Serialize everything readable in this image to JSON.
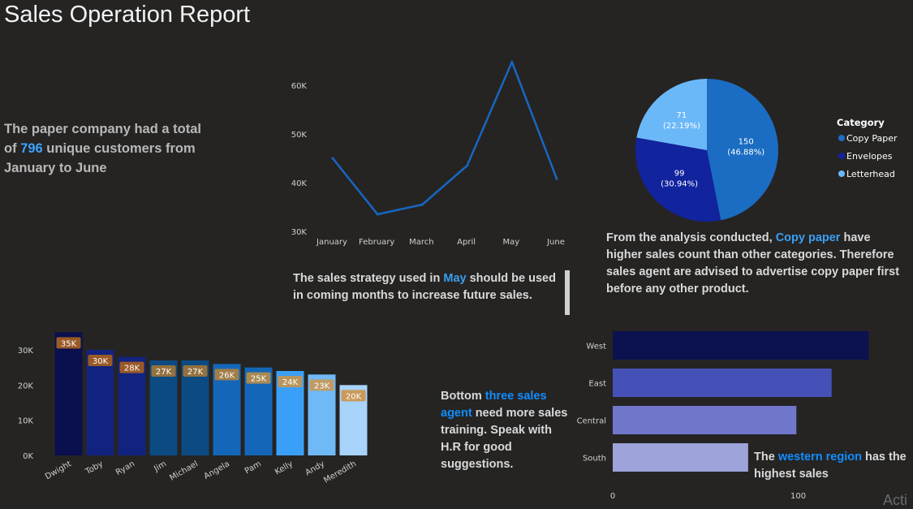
{
  "title": "Sales Operation Report",
  "notes": {
    "customers": {
      "pre": "The paper company had a total of ",
      "value": "796",
      "post": " unique customers from January to June"
    },
    "strategy": {
      "pre": "The sales strategy used in ",
      "highlight": "May",
      "post": " should be used in coming months to increase future sales."
    },
    "category": {
      "pre": "From the analysis conducted, ",
      "highlight": "Copy paper",
      "post": " have higher sales count than other categories. Therefore sales agent are advised to advertise copy paper first before any other product."
    },
    "agents": {
      "pre": "Bottom ",
      "highlight": "three sales agent",
      "post": " need more sales training. Speak with H.R for good suggestions."
    },
    "region": {
      "pre": "The ",
      "highlight": "western region",
      "post": " has the highest sales"
    }
  },
  "watermark": "Acti",
  "chart_data": [
    {
      "type": "line",
      "categories": [
        "January",
        "February",
        "March",
        "April",
        "May",
        "June"
      ],
      "values": [
        45000,
        33500,
        35500,
        43500,
        64800,
        40800
      ],
      "yticks": [
        "30K",
        "40K",
        "50K",
        "60K"
      ],
      "ylim": [
        30000,
        65000
      ],
      "color": "#1767c0"
    },
    {
      "type": "pie",
      "legend_title": "Category",
      "slices": [
        {
          "label": "Copy Paper",
          "value": 150,
          "pct": "(46.88%)",
          "color": "#1a6dc2"
        },
        {
          "label": "Envelopes",
          "value": 99,
          "pct": "(30.94%)",
          "color": "#12239e"
        },
        {
          "label": "Letterhead",
          "value": 71,
          "pct": "(22.19%)",
          "color": "#6bb8f9"
        }
      ]
    },
    {
      "type": "bar",
      "categories": [
        "Dwight",
        "Toby",
        "Ryan",
        "Jim",
        "Michael",
        "Angela",
        "Pam",
        "Kelly",
        "Andy",
        "Meredith"
      ],
      "values": [
        35000,
        30000,
        28000,
        27000,
        27000,
        26000,
        25000,
        24000,
        23000,
        20000
      ],
      "labels": [
        "35K",
        "30K",
        "28K",
        "27K",
        "27K",
        "26K",
        "25K",
        "24K",
        "23K",
        "20K"
      ],
      "colors": [
        "#0a0f4e",
        "#12237f",
        "#12237f",
        "#0c4a82",
        "#0c4a82",
        "#1467b8",
        "#1467b8",
        "#3aa0f7",
        "#6fb9f7",
        "#a8d3fb"
      ],
      "label_colors": [
        "#9a5a27",
        "#9a5a27",
        "#9a5a27",
        "#94713f",
        "#94713f",
        "#a07e4a",
        "#a98a53",
        "#b9955d",
        "#bf9c66",
        "#c99a5a"
      ],
      "yticks": [
        "0K",
        "10K",
        "20K",
        "30K"
      ],
      "ylim": [
        0,
        36000
      ]
    },
    {
      "type": "bar",
      "orientation": "horizontal",
      "categories": [
        "West",
        "East",
        "Central",
        "South"
      ],
      "values": [
        138,
        118,
        99,
        73
      ],
      "colors": [
        "#0c114f",
        "#4651b8",
        "#7077cb",
        "#9ea3da"
      ],
      "xticks": [
        "0",
        "100"
      ],
      "xlim": [
        0,
        140
      ]
    }
  ]
}
